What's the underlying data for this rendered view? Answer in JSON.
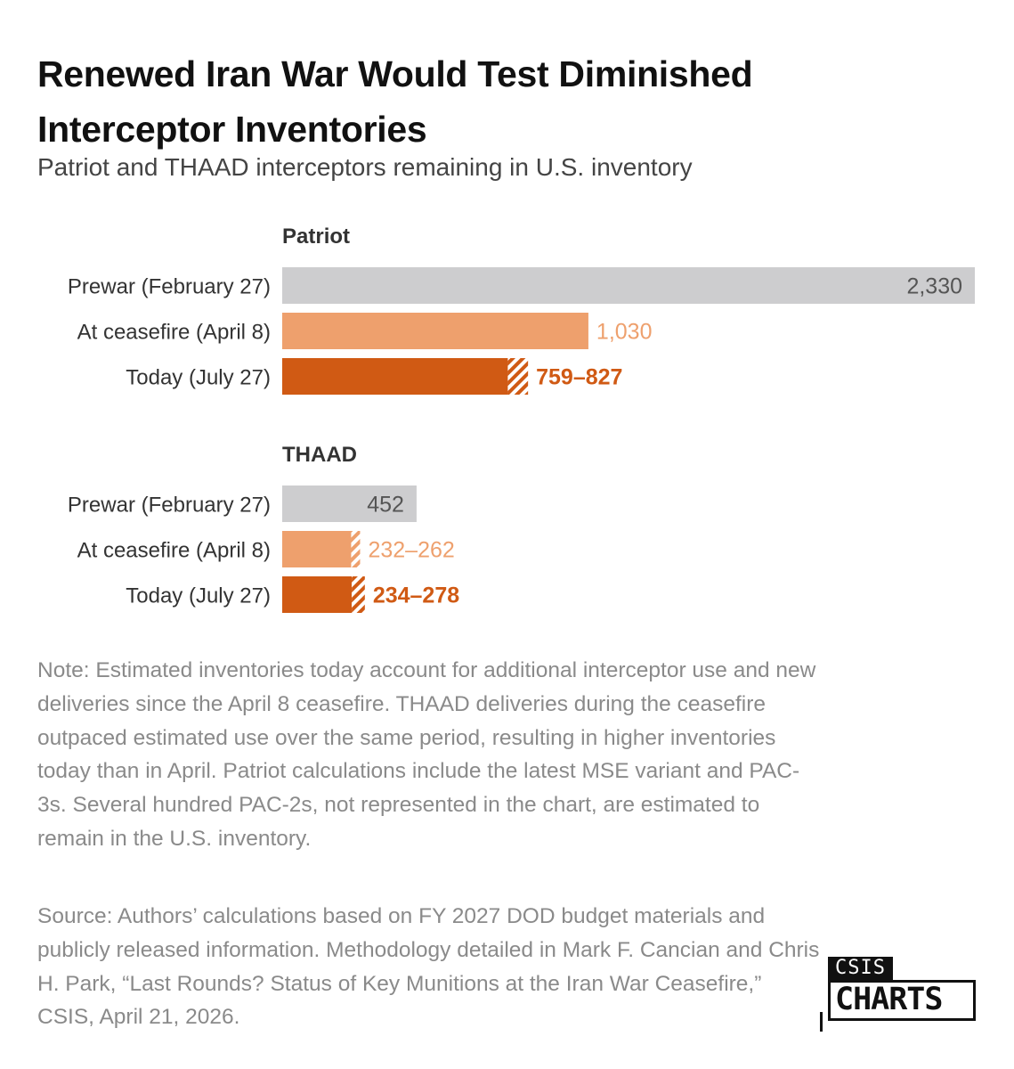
{
  "header": {
    "title": "Renewed Iran War Would Test Diminished Interceptor Inventories",
    "subtitle": "Patriot and THAAD interceptors remaining in U.S. inventory"
  },
  "chart_data": {
    "type": "bar",
    "orientation": "horizontal",
    "max_value": 2330,
    "colors": {
      "prewar": "#cdcdcf",
      "ceasefire": "#eea06d",
      "today": "#d05a14",
      "prewar_label": "#555555",
      "ceasefire_label": "#eea06d",
      "today_label": "#d05a14"
    },
    "groups": [
      {
        "name": "Patriot",
        "rows": [
          {
            "key": "prewar",
            "label": "Prewar (February 27)",
            "low": 2330,
            "high": 2330,
            "value_label": "2,330",
            "label_inside": true,
            "bold": false
          },
          {
            "key": "ceasefire",
            "label": "At ceasefire (April 8)",
            "low": 1030,
            "high": 1030,
            "value_label": "1,030",
            "label_inside": false,
            "bold": false
          },
          {
            "key": "today",
            "label": "Today (July 27)",
            "low": 759,
            "high": 827,
            "value_label": "759–827",
            "label_inside": false,
            "bold": true
          }
        ]
      },
      {
        "name": "THAAD",
        "rows": [
          {
            "key": "prewar",
            "label": "Prewar (February 27)",
            "low": 452,
            "high": 452,
            "value_label": "452",
            "label_inside": true,
            "bold": false
          },
          {
            "key": "ceasefire",
            "label": "At ceasefire (April 8)",
            "low": 232,
            "high": 262,
            "value_label": "232–262",
            "label_inside": false,
            "bold": false
          },
          {
            "key": "today",
            "label": "Today (July 27)",
            "low": 234,
            "high": 278,
            "value_label": "234–278",
            "label_inside": false,
            "bold": true
          }
        ]
      }
    ]
  },
  "footer": {
    "note": "Note: Estimated inventories today account for additional interceptor use and new deliveries since the April 8 ceasefire. THAAD deliveries during the ceasefire outpaced estimated use over the same period, resulting in higher inventories today than in April. Patriot calculations include the latest MSE variant and PAC-3s. Several hundred PAC-2s, not represented in the chart, are estimated to remain in the U.S. inventory.",
    "source": "Source: Authors’ calculations based on FY 2027 DOD budget materials and publicly released information. Methodology detailed in Mark F. Cancian and Chris H. Park, “Last Rounds? Status of Key Munitions at the Iran War Ceasefire,” CSIS, April 21, 2026."
  },
  "logo": {
    "top": "CSIS",
    "bottom": "CHARTS"
  }
}
